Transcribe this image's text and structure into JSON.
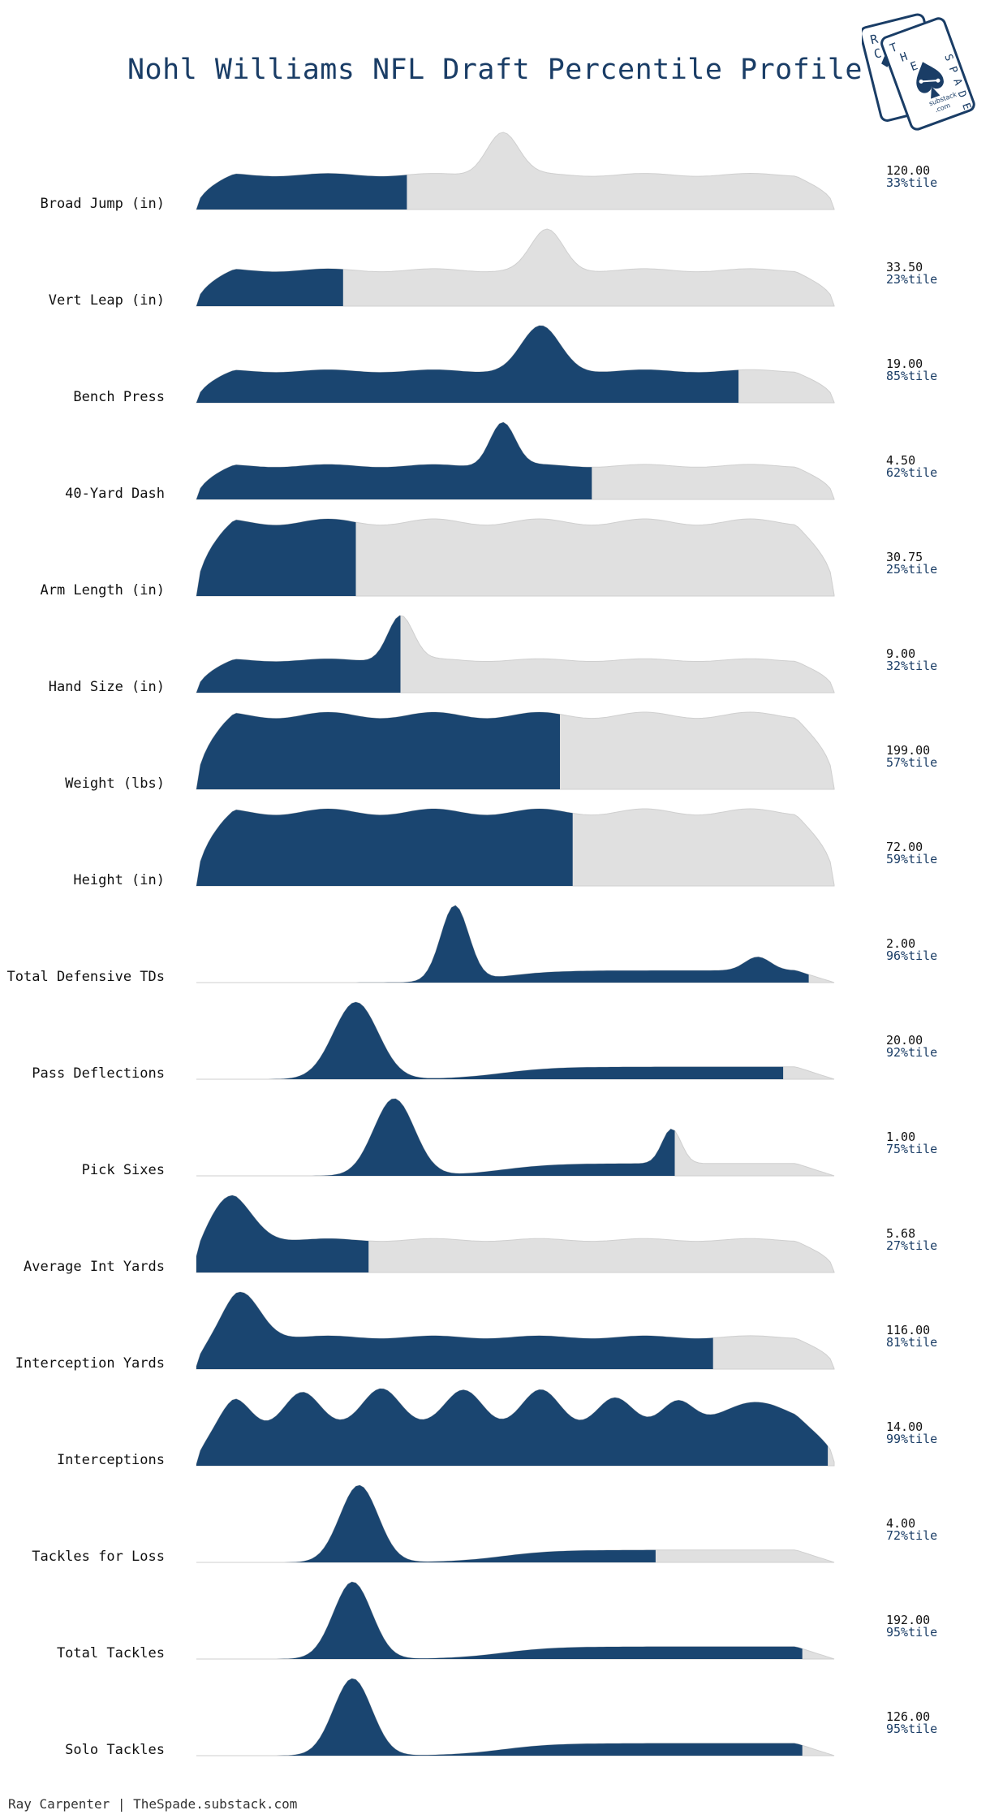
{
  "title": "Nohl Williams NFL Draft Percentile Profile",
  "footer": "Ray Carpenter | TheSpade.substack.com",
  "logo": {
    "name": "the-spade-logo",
    "front_letters": "THE SPADE",
    "back_letters": "RC",
    "site_line1": "substack",
    "site_line2": ".com"
  },
  "colors": {
    "filled": "#1a4570",
    "unfilled": "#e0e0e0",
    "outline": "#cfcfcf",
    "title": "#1a3d66"
  },
  "chart_data": {
    "type": "ridgeline",
    "title": "Nohl Williams NFL Draft Percentile Profile",
    "rows": [
      {
        "label": "Broad Jump (in)",
        "value": "120.00",
        "percentile_label": "33%tile",
        "percentile": 33,
        "peaks": [
          [
            0.48,
            0.9,
            0.025
          ]
        ]
      },
      {
        "label": "Vert Leap (in)",
        "value": "33.50",
        "percentile_label": "23%tile",
        "percentile": 23,
        "peaks": [
          [
            0.55,
            0.8,
            0.025
          ]
        ]
      },
      {
        "label": "Bench Press",
        "value": "19.00",
        "percentile_label": "85%tile",
        "percentile": 85,
        "peaks": [
          [
            0.54,
            1.0,
            0.03
          ]
        ]
      },
      {
        "label": "40-Yard Dash",
        "value": "4.50",
        "percentile_label": "62%tile",
        "percentile": 62,
        "peaks": [
          [
            0.48,
            0.95,
            0.02
          ]
        ]
      },
      {
        "label": "Arm Length (in)",
        "value": "30.75",
        "percentile_label": "25%tile",
        "percentile": 25,
        "peaks": []
      },
      {
        "label": "Hand Size (in)",
        "value": "9.00",
        "percentile_label": "32%tile",
        "percentile": 32,
        "peaks": [
          [
            0.32,
            1.0,
            0.02
          ]
        ]
      },
      {
        "label": "Weight (lbs)",
        "value": "199.00",
        "percentile_label": "57%tile",
        "percentile": 57,
        "peaks": []
      },
      {
        "label": "Height (in)",
        "value": "72.00",
        "percentile_label": "59%tile",
        "percentile": 59,
        "peaks": []
      },
      {
        "label": "Total Defensive TDs",
        "value": "2.00",
        "percentile_label": "96%tile",
        "percentile": 96,
        "peaks": [
          [
            0.405,
            1.0,
            0.022
          ],
          [
            0.88,
            0.18,
            0.02
          ]
        ]
      },
      {
        "label": "Pass Deflections",
        "value": "20.00",
        "percentile_label": "92%tile",
        "percentile": 92,
        "peaks": [
          [
            0.25,
            1.0,
            0.035
          ]
        ]
      },
      {
        "label": "Pick Sixes",
        "value": "1.00",
        "percentile_label": "75%tile",
        "percentile": 75,
        "peaks": [
          [
            0.31,
            1.0,
            0.032
          ],
          [
            0.745,
            0.45,
            0.015
          ]
        ]
      },
      {
        "label": "Average Int Yards",
        "value": "5.68",
        "percentile_label": "27%tile",
        "percentile": 27,
        "peaks": [
          [
            0.05,
            1.0,
            0.035
          ]
        ]
      },
      {
        "label": "Interception Yards",
        "value": "116.00",
        "percentile_label": "81%tile",
        "percentile": 81,
        "peaks": [
          [
            0.07,
            1.0,
            0.03
          ]
        ]
      },
      {
        "label": "Interceptions",
        "value": "14.00",
        "percentile_label": "99%tile",
        "percentile": 99,
        "peaks": [
          [
            0.06,
            0.55,
            0.025
          ],
          [
            0.165,
            0.7,
            0.028
          ],
          [
            0.29,
            0.8,
            0.03
          ],
          [
            0.42,
            0.75,
            0.03
          ],
          [
            0.54,
            0.72,
            0.03
          ],
          [
            0.655,
            0.6,
            0.028
          ],
          [
            0.755,
            0.5,
            0.025
          ],
          [
            0.88,
            0.48,
            0.06
          ]
        ]
      },
      {
        "label": "Tackles for Loss",
        "value": "4.00",
        "percentile_label": "72%tile",
        "percentile": 72,
        "peaks": [
          [
            0.255,
            1.0,
            0.03
          ]
        ]
      },
      {
        "label": "Total Tackles",
        "value": "192.00",
        "percentile_label": "95%tile",
        "percentile": 95,
        "peaks": [
          [
            0.245,
            1.0,
            0.03
          ]
        ]
      },
      {
        "label": "Solo Tackles",
        "value": "126.00",
        "percentile_label": "95%tile",
        "percentile": 95,
        "peaks": [
          [
            0.245,
            1.0,
            0.03
          ]
        ]
      }
    ]
  }
}
